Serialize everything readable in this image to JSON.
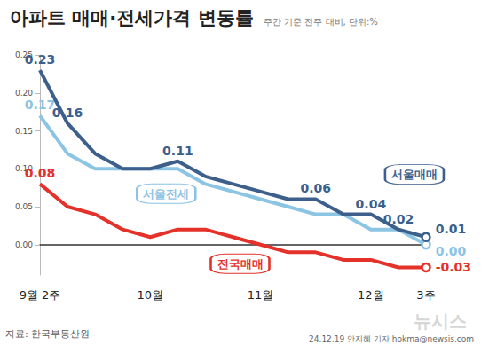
{
  "chart_data": {
    "type": "line",
    "title": "아파트 매매·전세가격 변동률",
    "subtitle": "주간 기준 전주 대비, 단위:%",
    "source": "자료: 한국부동산원",
    "credit": "24.12.19 안지혜 기자 hokma@newsis.com",
    "watermark": "뉴시스",
    "categories": [
      "9월 2주",
      null,
      null,
      null,
      "10월",
      null,
      null,
      null,
      "11월",
      null,
      null,
      null,
      "12월",
      null,
      "3주"
    ],
    "series": [
      {
        "name": "서울매매",
        "color": "#3d5f8c",
        "values": [
          0.23,
          0.16,
          0.12,
          0.1,
          0.1,
          0.11,
          0.09,
          0.08,
          0.07,
          0.06,
          0.06,
          0.04,
          0.04,
          0.02,
          0.01
        ],
        "value_labels": [
          "0.23",
          "0.16",
          null,
          null,
          null,
          "0.11",
          null,
          null,
          null,
          null,
          "0.06",
          null,
          "0.04",
          "0.02",
          "0.01"
        ]
      },
      {
        "name": "서울전세",
        "color": "#8cc4e4",
        "values": [
          0.17,
          0.12,
          0.1,
          0.1,
          0.1,
          0.1,
          0.08,
          0.07,
          0.06,
          0.05,
          0.04,
          0.04,
          0.02,
          0.02,
          0.0
        ],
        "value_labels": [
          "0.17",
          null,
          null,
          null,
          null,
          null,
          null,
          null,
          null,
          null,
          null,
          null,
          null,
          null,
          "0.00"
        ]
      },
      {
        "name": "전국매매",
        "color": "#e4322b",
        "values": [
          0.08,
          0.05,
          0.04,
          0.02,
          0.01,
          0.02,
          0.02,
          0.01,
          0.0,
          -0.01,
          -0.01,
          -0.02,
          -0.02,
          -0.03,
          -0.03
        ],
        "value_labels": [
          "0.08",
          null,
          null,
          null,
          null,
          null,
          null,
          null,
          null,
          null,
          null,
          null,
          null,
          null,
          "-0.03"
        ]
      }
    ],
    "ylim": [
      -0.04,
      0.25
    ],
    "yticks": [
      {
        "value": 0,
        "label": "0.00"
      },
      {
        "value": 0.05,
        "label": "0.05"
      },
      {
        "value": 0.1,
        "label": "0.10"
      },
      {
        "value": 0.15,
        "label": "0.15"
      },
      {
        "value": 0.2,
        "label": "0.20"
      },
      {
        "value": 0.25,
        "label": "0.25"
      }
    ],
    "grid": false,
    "data_labels": true
  }
}
